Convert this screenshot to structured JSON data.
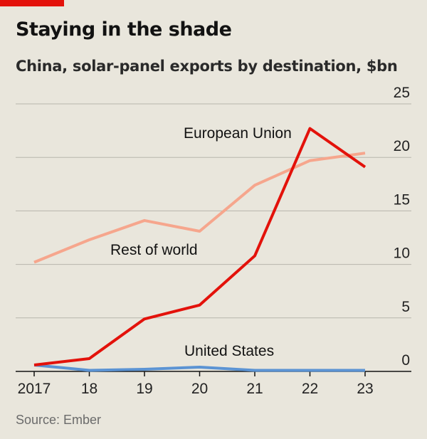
{
  "header": {
    "title": "Staying in the shade",
    "subtitle": "China, solar-panel exports by destination, $bn"
  },
  "footer": {
    "source": "Source: Ember"
  },
  "colors": {
    "background": "#e9e6dc",
    "accent": "#e3120b",
    "european_union": "#e3120b",
    "rest_of_world": "#f6a68d",
    "united_states": "#5b93d3",
    "gridline": "#b7b5ac",
    "axis": "#121212"
  },
  "chart_data": {
    "type": "line",
    "title": "Staying in the shade",
    "subtitle": "China, solar-panel exports by destination, $bn",
    "x": [
      "2017",
      "18",
      "19",
      "20",
      "21",
      "22",
      "23"
    ],
    "ylim": [
      0,
      25
    ],
    "yticks": [
      "0",
      "5",
      "10",
      "15",
      "20",
      "25"
    ],
    "grid": true,
    "y_axis_side": "right",
    "series": [
      {
        "name": "European Union",
        "values": [
          0.6,
          1.2,
          4.9,
          6.2,
          10.8,
          22.7,
          19.1
        ]
      },
      {
        "name": "Rest of world",
        "values": [
          10.2,
          12.3,
          14.1,
          13.1,
          17.4,
          19.7,
          20.4
        ]
      },
      {
        "name": "United States",
        "values": [
          0.6,
          0.1,
          0.2,
          0.4,
          0.1,
          0.1,
          0.1
        ]
      }
    ]
  }
}
